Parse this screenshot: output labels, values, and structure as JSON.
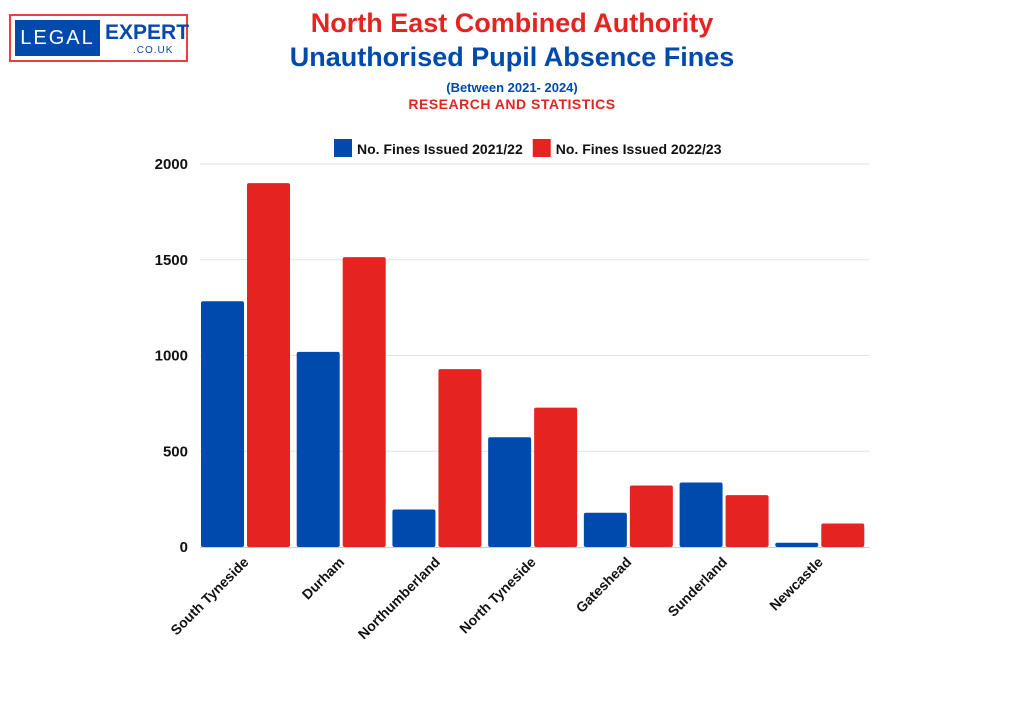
{
  "logo": {
    "text_left": "LEGAL",
    "text_right": "EXPERT",
    "text_sub": ".CO.UK"
  },
  "chart_data": {
    "type": "bar",
    "title": "North East Combined Authority",
    "subtitle": "Unauthorised Pupil Absence Fines",
    "note": "(Between 2021- 2024)",
    "tagline": "RESEARCH AND STATISTICS",
    "categories": [
      "South Tyneside",
      "Durham",
      "Northumberland",
      "North Tyneside",
      "Gateshead",
      "Sunderland",
      "Newcastle"
    ],
    "series": [
      {
        "name": "No. Fines Issued 2021/22",
        "color": "#004aad",
        "values": [
          1283,
          1019,
          196,
          573,
          179,
          337,
          22
        ]
      },
      {
        "name": "No. Fines Issued 2022/23",
        "color": "#e52421",
        "values": [
          1900,
          1514,
          929,
          728,
          321,
          271,
          123
        ]
      }
    ],
    "ylim": [
      0,
      2000
    ],
    "yticks": [
      0,
      500,
      1000,
      1500,
      2000
    ],
    "grid": true,
    "legend": "top"
  }
}
